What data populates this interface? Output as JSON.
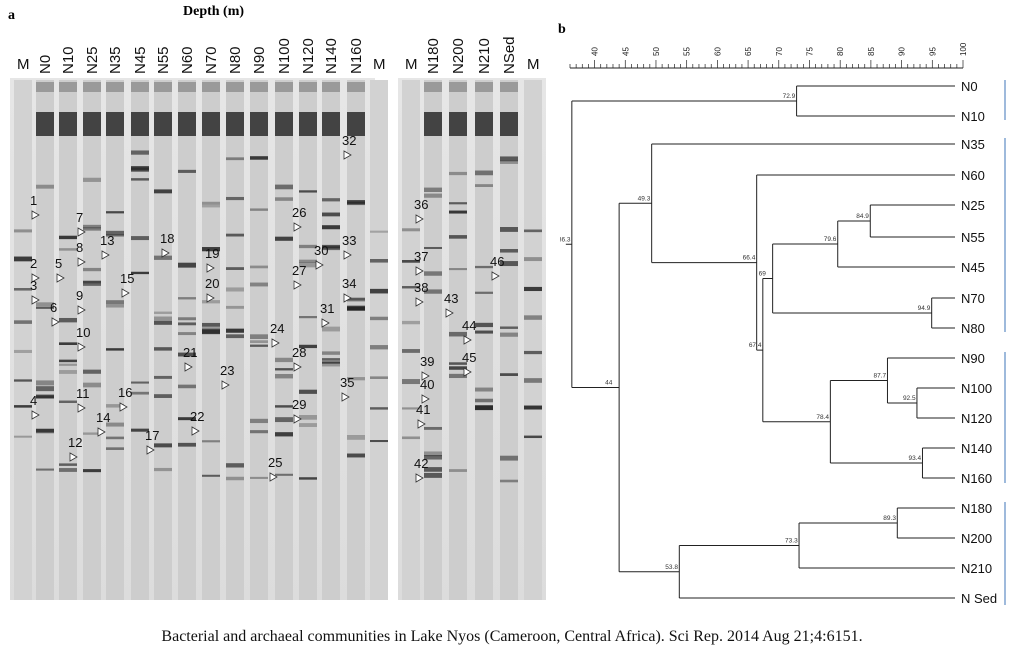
{
  "panel_a": {
    "label": "a",
    "title": "Depth (m)",
    "lanes_left": [
      "M",
      "N0",
      "N10",
      "N25",
      "N35",
      "N45",
      "N55",
      "N60",
      "N70",
      "N80",
      "N90",
      "N100",
      "N120",
      "N140",
      "N160",
      "M"
    ],
    "lanes_right": [
      "M",
      "N180",
      "N200",
      "N210",
      "NSed",
      "M"
    ],
    "band_markers": [
      {
        "n": "1"
      },
      {
        "n": "2"
      },
      {
        "n": "3"
      },
      {
        "n": "4"
      },
      {
        "n": "5"
      },
      {
        "n": "6"
      },
      {
        "n": "7"
      },
      {
        "n": "8"
      },
      {
        "n": "9"
      },
      {
        "n": "10"
      },
      {
        "n": "11"
      },
      {
        "n": "12"
      },
      {
        "n": "13"
      },
      {
        "n": "14"
      },
      {
        "n": "15"
      },
      {
        "n": "16"
      },
      {
        "n": "17"
      },
      {
        "n": "18"
      },
      {
        "n": "19"
      },
      {
        "n": "20"
      },
      {
        "n": "21"
      },
      {
        "n": "22"
      },
      {
        "n": "23"
      },
      {
        "n": "24"
      },
      {
        "n": "25"
      },
      {
        "n": "26"
      },
      {
        "n": "27"
      },
      {
        "n": "28"
      },
      {
        "n": "29"
      },
      {
        "n": "30"
      },
      {
        "n": "31"
      },
      {
        "n": "32"
      },
      {
        "n": "33"
      },
      {
        "n": "34"
      },
      {
        "n": "35"
      },
      {
        "n": "36"
      },
      {
        "n": "37"
      },
      {
        "n": "38"
      },
      {
        "n": "39"
      },
      {
        "n": "40"
      },
      {
        "n": "41"
      },
      {
        "n": "42"
      },
      {
        "n": "43"
      },
      {
        "n": "44"
      },
      {
        "n": "45"
      },
      {
        "n": "46"
      }
    ]
  },
  "panel_b": {
    "label": "b",
    "scale_ticks": [
      "40",
      "45",
      "50",
      "55",
      "60",
      "65",
      "70",
      "75",
      "80",
      "85",
      "90",
      "95",
      "100"
    ],
    "leaves": [
      "N0",
      "N10",
      "N35",
      "N60",
      "N25",
      "N55",
      "N45",
      "N70",
      "N80",
      "N90",
      "N100",
      "N120",
      "N140",
      "N160",
      "N180",
      "N200",
      "N210",
      "N Sed"
    ],
    "node_values": [
      "72.9",
      "49.3",
      "36.3",
      "84.9",
      "79.6",
      "66.4",
      "69",
      "94.9",
      "67.4",
      "87.7",
      "92.5",
      "78.4",
      "93.4",
      "44",
      "89.3",
      "73.3",
      "53.8"
    ]
  },
  "caption": "Bacterial and archaeal communities in Lake Nyos (Cameroon, Central Africa). Sci Rep. 2014 Aug 21;4:6151."
}
